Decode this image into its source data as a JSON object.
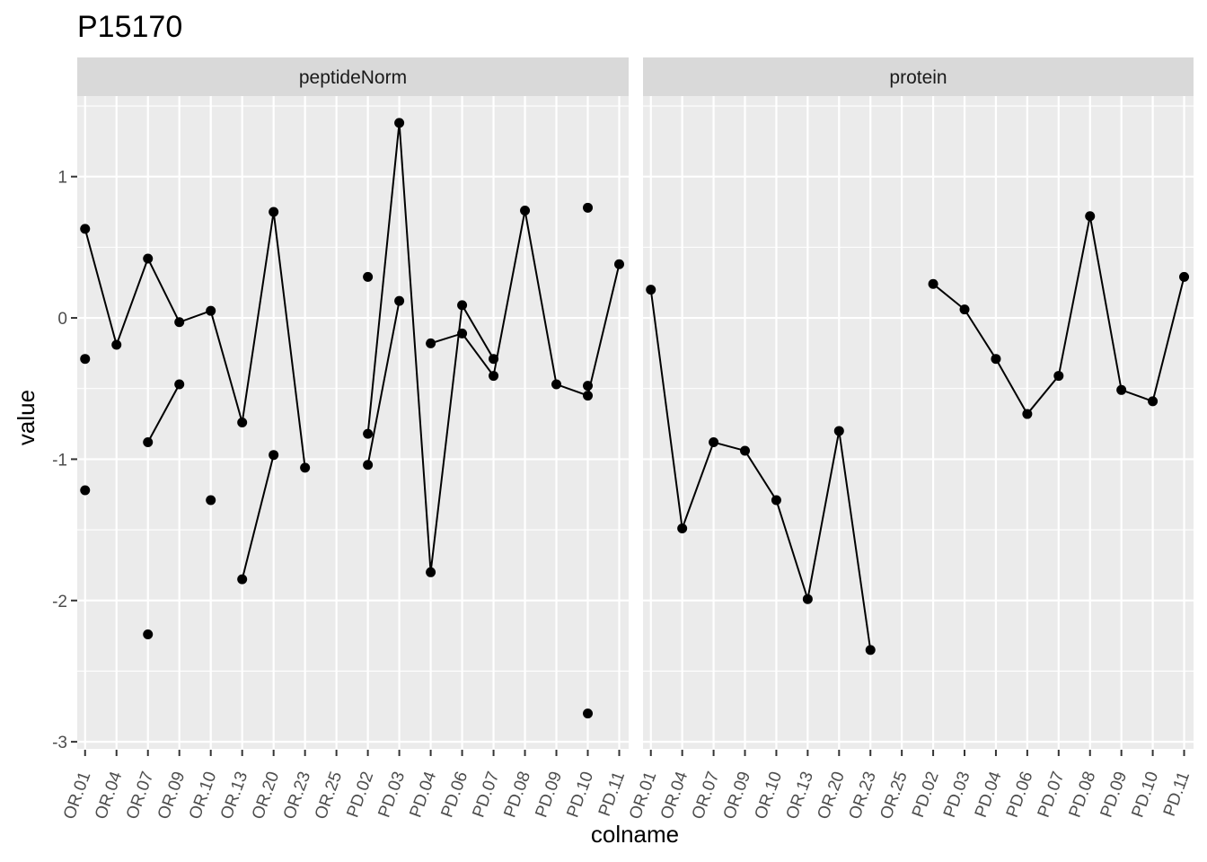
{
  "chart_data": {
    "type": "line",
    "title": "P15170",
    "xlabel": "colname",
    "ylabel": "value",
    "ylim": [
      -3.05,
      1.57
    ],
    "y_ticks": [
      -3,
      -2,
      -1,
      0,
      1
    ],
    "y_tick_labels": [
      "-3",
      "-2",
      "-1",
      "0",
      "1"
    ],
    "categories": [
      "OR.01",
      "OR.04",
      "OR.07",
      "OR.09",
      "OR.10",
      "OR.13",
      "OR.20",
      "OR.23",
      "OR.25",
      "PD.02",
      "PD.03",
      "PD.04",
      "PD.06",
      "PD.07",
      "PD.08",
      "PD.09",
      "PD.10",
      "PD.11"
    ],
    "grid": true,
    "legend": "none",
    "colors": {
      "panel_bg": "#ebebeb",
      "strip_bg": "#d9d9d9",
      "grid": "#ffffff",
      "mark": "#000000",
      "tick_text": "#4d4d4d"
    },
    "panels": [
      {
        "name": "peptideNorm",
        "series": [
          {
            "values": [
              0.63,
              -0.19,
              0.42,
              -0.03,
              0.05,
              -0.74,
              0.75,
              -1.06,
              null,
              null,
              null,
              -0.18,
              -0.11,
              -0.41,
              0.76,
              -0.47,
              -0.55,
              0.38
            ]
          },
          {
            "values": [
              -0.29,
              null,
              -0.88,
              -0.47,
              null,
              -1.85,
              -0.97,
              null,
              null,
              -0.82,
              1.38,
              -1.8,
              0.09,
              -0.29,
              null,
              null,
              0.78,
              null
            ]
          },
          {
            "values": [
              -1.22,
              null,
              -2.24,
              null,
              -1.29,
              null,
              null,
              null,
              null,
              0.29,
              null,
              null,
              null,
              null,
              null,
              null,
              -0.48,
              null
            ]
          },
          {
            "values": [
              null,
              null,
              null,
              null,
              null,
              null,
              null,
              null,
              null,
              -1.04,
              0.12,
              null,
              null,
              null,
              null,
              null,
              -2.8,
              null
            ]
          }
        ]
      },
      {
        "name": "protein",
        "series": [
          {
            "values": [
              0.2,
              -1.49,
              -0.88,
              -0.94,
              -1.29,
              -1.99,
              -0.8,
              -2.35,
              null,
              0.24,
              0.06,
              -0.29,
              -0.68,
              -0.41,
              0.72,
              -0.51,
              -0.59,
              0.29
            ]
          }
        ]
      }
    ]
  }
}
